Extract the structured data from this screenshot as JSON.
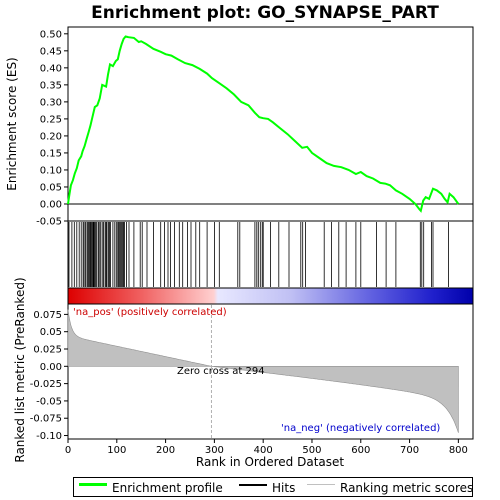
{
  "chart_data": {
    "type": "line",
    "title": "Enrichment plot: GO_SYNAPSE_PART",
    "xlabel": "Rank in Ordered Dataset",
    "es_ylabel": "Enrichment score (ES)",
    "metric_ylabel": "Ranked list metric (PreRanked)",
    "xlim": [
      0,
      830
    ],
    "xticks": [
      0,
      100,
      200,
      300,
      400,
      500,
      600,
      700,
      800
    ],
    "es_ylim": [
      -0.05,
      0.52
    ],
    "es_yticks": [
      -0.05,
      0.0,
      0.05,
      0.1,
      0.15,
      0.2,
      0.25,
      0.3,
      0.35,
      0.4,
      0.45,
      0.5
    ],
    "metric_ylim": [
      -0.105,
      0.09
    ],
    "metric_yticks": [
      -0.1,
      -0.075,
      -0.05,
      -0.025,
      0.0,
      0.025,
      0.05,
      0.075
    ],
    "total_genes": 800,
    "zero_cross_rank": 294,
    "zero_cross_label": "Zero cross at 294",
    "pos_label": "'na_pos' (positively correlated)",
    "neg_label": "'na_neg' (negatively correlated)",
    "colors": {
      "profile": "#00ff00",
      "pos_label": "#cc0000",
      "neg_label": "#0000cc",
      "metric_fill": "#c0c0c0",
      "zero_cross_line": "#b0b0b0"
    },
    "es_profile": [
      [
        0,
        0.0
      ],
      [
        3,
        0.03
      ],
      [
        6,
        0.055
      ],
      [
        10,
        0.07
      ],
      [
        14,
        0.09
      ],
      [
        18,
        0.105
      ],
      [
        22,
        0.128
      ],
      [
        27,
        0.14
      ],
      [
        30,
        0.155
      ],
      [
        34,
        0.17
      ],
      [
        38,
        0.19
      ],
      [
        42,
        0.21
      ],
      [
        46,
        0.23
      ],
      [
        50,
        0.255
      ],
      [
        55,
        0.285
      ],
      [
        60,
        0.29
      ],
      [
        65,
        0.31
      ],
      [
        70,
        0.35
      ],
      [
        78,
        0.345
      ],
      [
        82,
        0.38
      ],
      [
        86,
        0.41
      ],
      [
        92,
        0.405
      ],
      [
        98,
        0.42
      ],
      [
        102,
        0.425
      ],
      [
        106,
        0.45
      ],
      [
        110,
        0.47
      ],
      [
        114,
        0.485
      ],
      [
        118,
        0.492
      ],
      [
        124,
        0.49
      ],
      [
        135,
        0.488
      ],
      [
        145,
        0.476
      ],
      [
        150,
        0.478
      ],
      [
        160,
        0.47
      ],
      [
        175,
        0.456
      ],
      [
        190,
        0.447
      ],
      [
        200,
        0.44
      ],
      [
        212,
        0.436
      ],
      [
        225,
        0.425
      ],
      [
        240,
        0.414
      ],
      [
        255,
        0.408
      ],
      [
        270,
        0.397
      ],
      [
        285,
        0.383
      ],
      [
        295,
        0.37
      ],
      [
        310,
        0.355
      ],
      [
        325,
        0.34
      ],
      [
        340,
        0.322
      ],
      [
        355,
        0.3
      ],
      [
        370,
        0.29
      ],
      [
        383,
        0.268
      ],
      [
        392,
        0.255
      ],
      [
        400,
        0.252
      ],
      [
        410,
        0.25
      ],
      [
        420,
        0.24
      ],
      [
        435,
        0.222
      ],
      [
        450,
        0.205
      ],
      [
        465,
        0.185
      ],
      [
        480,
        0.165
      ],
      [
        490,
        0.168
      ],
      [
        500,
        0.15
      ],
      [
        515,
        0.135
      ],
      [
        530,
        0.12
      ],
      [
        545,
        0.112
      ],
      [
        560,
        0.108
      ],
      [
        575,
        0.1
      ],
      [
        590,
        0.088
      ],
      [
        600,
        0.094
      ],
      [
        612,
        0.082
      ],
      [
        625,
        0.075
      ],
      [
        640,
        0.062
      ],
      [
        650,
        0.06
      ],
      [
        660,
        0.055
      ],
      [
        672,
        0.04
      ],
      [
        685,
        0.03
      ],
      [
        700,
        0.015
      ],
      [
        712,
        0.0
      ],
      [
        720,
        -0.015
      ],
      [
        723,
        -0.02
      ],
      [
        728,
        0.01
      ],
      [
        733,
        0.02
      ],
      [
        740,
        0.015
      ],
      [
        748,
        0.045
      ],
      [
        756,
        0.04
      ],
      [
        765,
        0.03
      ],
      [
        772,
        0.015
      ],
      [
        778,
        0.005
      ],
      [
        782,
        0.03
      ],
      [
        790,
        0.02
      ],
      [
        800,
        0.0
      ]
    ],
    "hits": [
      2,
      8,
      13,
      18,
      23,
      27,
      31,
      33,
      36,
      39,
      41,
      43,
      45,
      47,
      48,
      50,
      52,
      53,
      55,
      57,
      59,
      62,
      64,
      67,
      70,
      73,
      76,
      78,
      80,
      83,
      85,
      87,
      92,
      96,
      99,
      102,
      104,
      106,
      108,
      110,
      112,
      114,
      116,
      120,
      125,
      135,
      148,
      152,
      162,
      175,
      190,
      198,
      205,
      210,
      218,
      228,
      235,
      245,
      252,
      262,
      270,
      285,
      300,
      310,
      348,
      352,
      383,
      387,
      390,
      394,
      398,
      400,
      415,
      432,
      453,
      477,
      481,
      487,
      525,
      540,
      555,
      570,
      590,
      600,
      632,
      652,
      672,
      722,
      725,
      729,
      745,
      748,
      780
    ]
  },
  "legend": {
    "profile": "Enrichment profile",
    "hits": "Hits",
    "metric": "Ranking metric scores"
  }
}
